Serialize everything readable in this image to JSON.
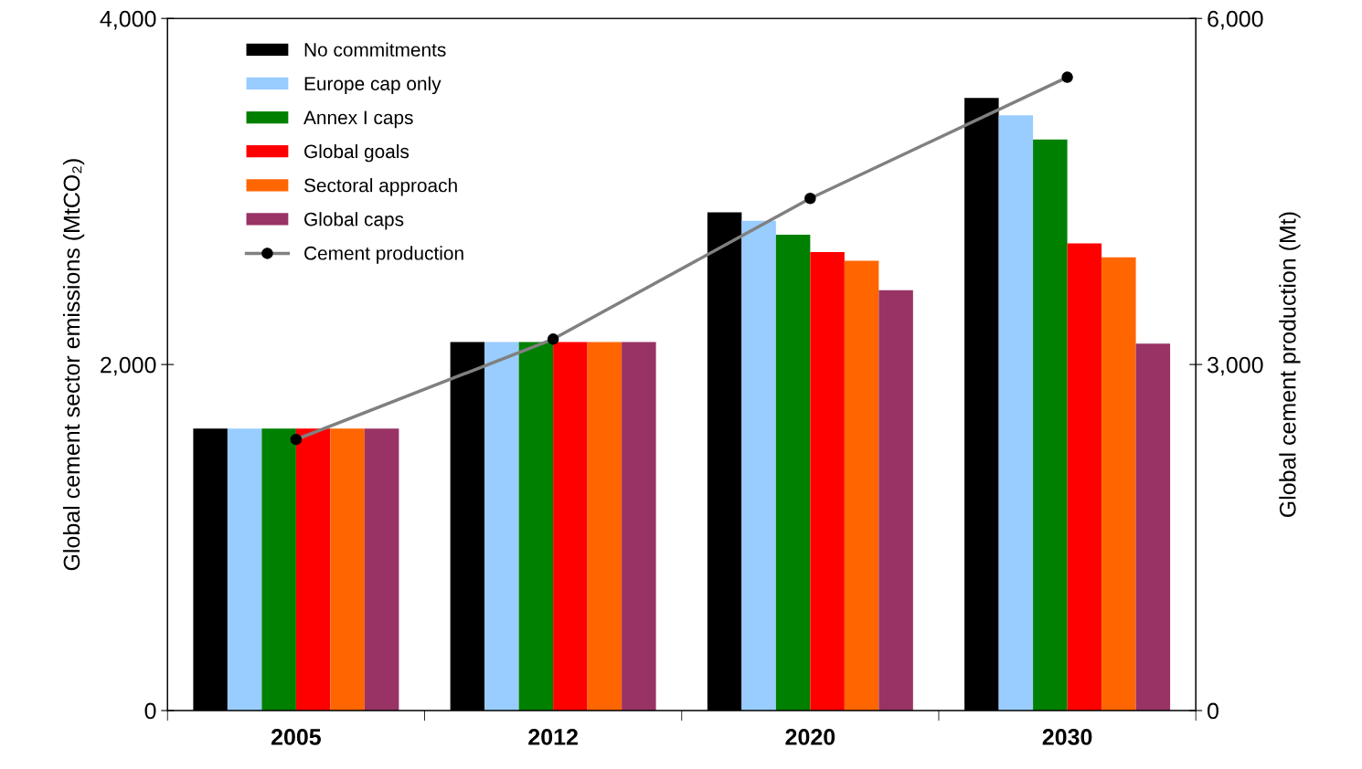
{
  "chart_data": {
    "type": "bar",
    "ylabel": "Global cement sector emissions (MtCO₂)",
    "y2label": "Global cement production (Mt)",
    "categories": [
      "2005",
      "2012",
      "2020",
      "2030"
    ],
    "series": [
      {
        "name": "No commitments",
        "color": "#000000",
        "values": [
          1630,
          2130,
          2880,
          3540
        ]
      },
      {
        "name": "Europe cap only",
        "color": "#99ccff",
        "values": [
          1630,
          2130,
          2830,
          3440
        ]
      },
      {
        "name": "Annex I caps",
        "color": "#008000",
        "values": [
          1630,
          2130,
          2750,
          3300
        ]
      },
      {
        "name": "Global goals",
        "color": "#ff0000",
        "values": [
          1630,
          2130,
          2650,
          2700
        ]
      },
      {
        "name": "Sectoral approach",
        "color": "#ff6600",
        "values": [
          1630,
          2130,
          2600,
          2620
        ]
      },
      {
        "name": "Global caps",
        "color": "#993366",
        "values": [
          1630,
          2130,
          2430,
          2120
        ]
      },
      {
        "name": "Cement production",
        "type": "line",
        "axis": "y2",
        "color": "#808080",
        "marker": "circle",
        "values": [
          2350,
          3220,
          4440,
          5490
        ]
      }
    ],
    "ylim": [
      0,
      4000
    ],
    "yticks": [
      {
        "value": 0,
        "label": "0"
      },
      {
        "value": 2000,
        "label": "2,000"
      },
      {
        "value": 4000,
        "label": "4,000"
      }
    ],
    "y2lim": [
      0,
      6000
    ],
    "y2ticks": [
      {
        "value": 0,
        "label": "0"
      },
      {
        "value": 3000,
        "label": "3,000"
      },
      {
        "value": 6000,
        "label": "6,000"
      }
    ],
    "legend": "top left",
    "grid": false
  }
}
